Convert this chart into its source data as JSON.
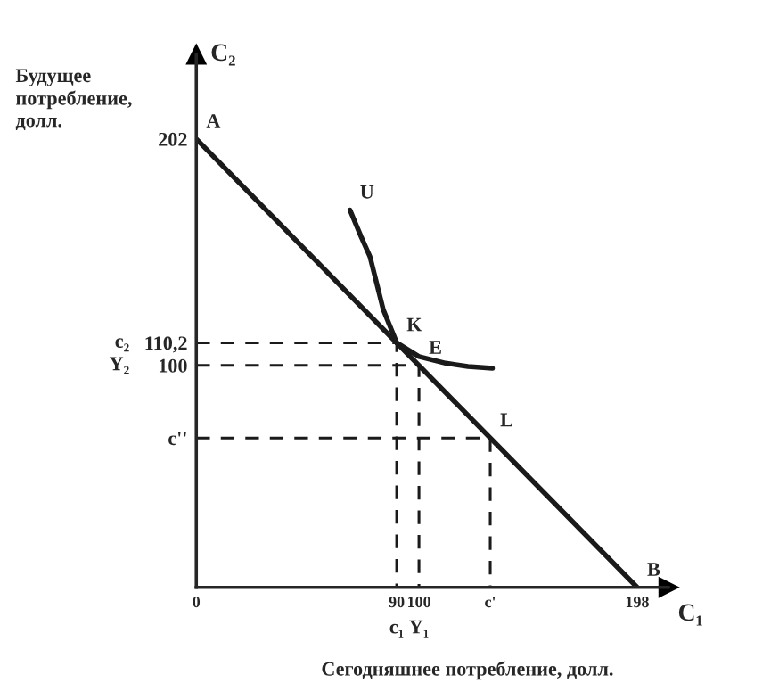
{
  "chart_data": {
    "type": "line",
    "xlabel": "C₁",
    "ylabel": "C₂",
    "annotations": [
      "Будущее потребление, долл.",
      "Сегодняшнее потребление, долл.",
      "c₂",
      "Y₂",
      "c₁",
      "Y₁",
      {
        "text": "A",
        "x": 0,
        "y": 202
      },
      {
        "text": "B",
        "x": 198,
        "y": 0
      },
      {
        "text": "K",
        "x": 90,
        "y": 110.2
      },
      {
        "text": "E",
        "x": 100,
        "y": 100
      },
      {
        "text": "L",
        "x": 132,
        "y": 67.3
      },
      {
        "text": "U",
        "x": 69,
        "y": 170
      }
    ],
    "xlim": [
      0,
      212
    ],
    "ylim": [
      0,
      240
    ],
    "xticks": [
      0,
      90,
      100,
      {
        "value": 132,
        "label": "c'"
      },
      198
    ],
    "yticks": [
      {
        "value": 67.3,
        "label": "c''"
      },
      100,
      {
        "value": 110.2,
        "label": "110,2"
      },
      202
    ],
    "grid": false,
    "legend": false,
    "series": [
      {
        "color": "#1a1a1a",
        "x": [
          0,
          198
        ],
        "values": [
          202,
          0
        ],
        "line_style": "solid"
      },
      {
        "color": "#1a1a1a",
        "x": [
          69,
          74,
          78,
          84,
          90,
          100,
          112,
          122,
          133
        ],
        "values": [
          170,
          158,
          149,
          125,
          110.2,
          104,
          101,
          99.5,
          98.7
        ],
        "line_style": "solid"
      },
      {
        "color": "#1a1a1a",
        "x": [
          0,
          90,
          90
        ],
        "values": [
          110.2,
          110.2,
          0
        ],
        "line_style": "dashed"
      },
      {
        "color": "#1a1a1a",
        "x": [
          0,
          100,
          100
        ],
        "values": [
          100,
          100,
          0
        ],
        "line_style": "dashed"
      },
      {
        "color": "#1a1a1a",
        "x": [
          0,
          132,
          132
        ],
        "values": [
          67.3,
          67.3,
          0
        ],
        "line_style": "dashed"
      }
    ]
  }
}
